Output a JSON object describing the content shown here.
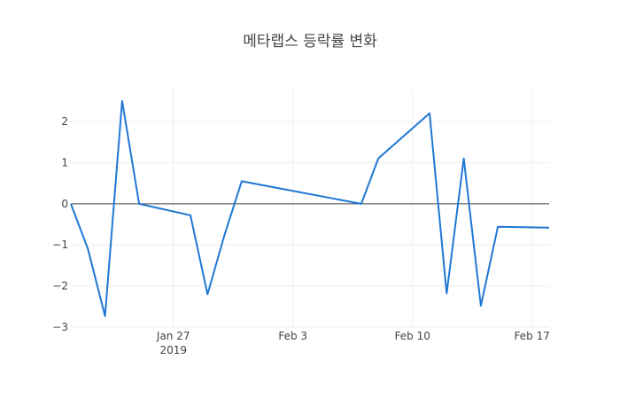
{
  "chart_data": {
    "type": "line",
    "title": "메타랩스 등락률 변화",
    "xlabel": "",
    "ylabel": "",
    "x": [
      "2019-01-21",
      "2019-01-22",
      "2019-01-23",
      "2019-01-24",
      "2019-01-25",
      "2019-01-28",
      "2019-01-29",
      "2019-01-30",
      "2019-01-31",
      "2019-02-07",
      "2019-02-08",
      "2019-02-11",
      "2019-02-12",
      "2019-02-13",
      "2019-02-14",
      "2019-02-15",
      "2019-02-18"
    ],
    "values": [
      0.0,
      -1.1,
      -2.73,
      2.5,
      0.0,
      -0.28,
      -2.2,
      -0.75,
      0.55,
      0.0,
      1.1,
      2.2,
      -2.18,
      1.1,
      -2.48,
      -0.56,
      -0.58
    ],
    "xlim": [
      "2019-01-21",
      "2019-02-18"
    ],
    "ylim": [
      -3,
      2.8
    ],
    "x_ticks": [
      {
        "date": "2019-01-27",
        "label": "Jan 27",
        "sublabel": "2019"
      },
      {
        "date": "2019-02-03",
        "label": "Feb 3",
        "sublabel": ""
      },
      {
        "date": "2019-02-10",
        "label": "Feb 10",
        "sublabel": ""
      },
      {
        "date": "2019-02-17",
        "label": "Feb 17",
        "sublabel": ""
      }
    ],
    "y_ticks": [
      2,
      1,
      0,
      -1,
      -2,
      -3
    ],
    "y_tick_labels": [
      "2",
      "1",
      "0",
      "−1",
      "−2",
      "−3"
    ],
    "grid": true,
    "zero_line": true,
    "line_color": "#1f77d4"
  }
}
